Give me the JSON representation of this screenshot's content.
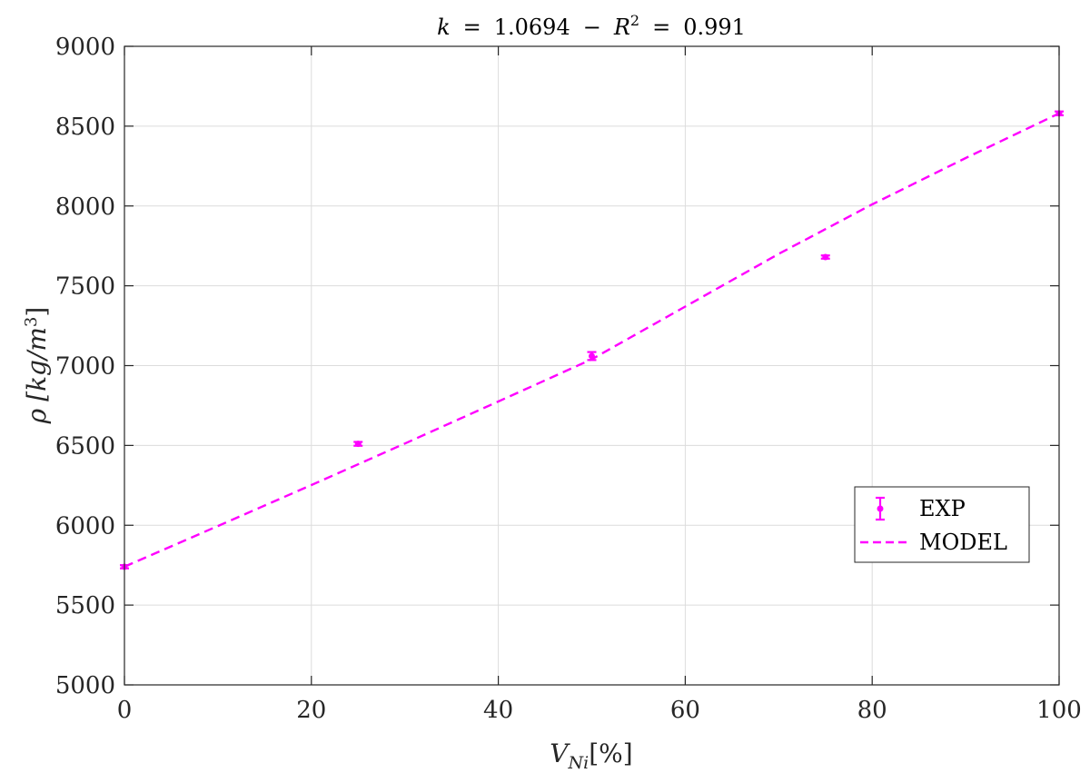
{
  "chart_data": {
    "type": "scatter",
    "title": {
      "k_symbol": "k",
      "k_value": "1.0694",
      "separator": "−",
      "r_symbol": "R",
      "r_exponent": "2",
      "r_value": "0.991",
      "equals": "="
    },
    "xlabel": {
      "symbol": "V",
      "subscript": "Ni",
      "unit": "[%]"
    },
    "ylabel": {
      "symbol": "ρ",
      "unit": "[kg/m",
      "unit_exponent": "3",
      "unit_close": "]"
    },
    "xlim": [
      0,
      100
    ],
    "ylim": [
      5000,
      9000
    ],
    "xticks": [
      0,
      20,
      40,
      60,
      80,
      100
    ],
    "yticks": [
      5000,
      5500,
      6000,
      6500,
      7000,
      7500,
      8000,
      8500,
      9000
    ],
    "grid": true,
    "legend_position": "lower-right",
    "color": "#ff00ff",
    "series": [
      {
        "name": "EXP",
        "kind": "errorbar",
        "x": [
          0,
          25,
          50,
          75,
          100
        ],
        "y": [
          5740,
          6510,
          7060,
          7680,
          8580
        ],
        "err": [
          10,
          12,
          25,
          10,
          12
        ]
      },
      {
        "name": "MODEL",
        "kind": "dashed-line",
        "x": [
          0,
          10,
          20,
          30,
          40,
          50,
          60,
          70,
          80,
          90,
          100
        ],
        "y": [
          5740,
          5995,
          6252,
          6512,
          6775,
          7040,
          7370,
          7700,
          8010,
          8300,
          8580
        ]
      }
    ]
  }
}
